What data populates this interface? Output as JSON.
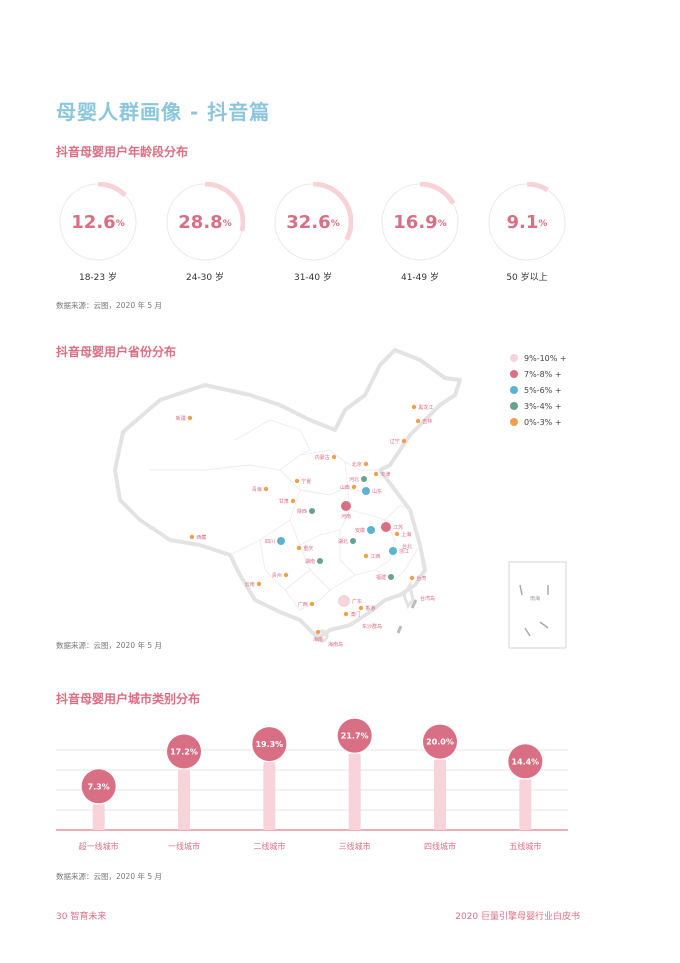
{
  "page_title": "母婴人群画像 - 抖音篇",
  "section1_title": "抖音母婴用户年龄段分布",
  "section2_title": "抖音母婴用户省份分布",
  "section3_title": "抖音母婴用户城市类别分布",
  "source1": "数据来源：云图，2020 年 5 月",
  "source2": "数据来源：云图，2020 年 5 月",
  "source3": "数据来源：云图，2020 年 5 月",
  "colors": {
    "primary": "#d96f84",
    "title_blue": "#8cc6dc",
    "light_pink": "#f7d3d8",
    "grey": "#e6e6e6"
  },
  "age_distribution": [
    {
      "label": "18-23 岁",
      "num": "12.6",
      "pct_sign": "%",
      "value": 12.6
    },
    {
      "label": "24-30 岁",
      "num": "28.8",
      "pct_sign": "%",
      "value": 28.8
    },
    {
      "label": "31-40 岁",
      "num": "32.6",
      "pct_sign": "%",
      "value": 32.6
    },
    {
      "label": "41-49 岁",
      "num": "16.9",
      "pct_sign": "%",
      "value": 16.9
    },
    {
      "label": "50 岁以上",
      "num": "9.1",
      "pct_sign": "%",
      "value": 9.1
    }
  ],
  "legend": [
    {
      "label": "9%-10% +",
      "color": "#f5d5dc"
    },
    {
      "label": "7%-8% +",
      "color": "#d96f84"
    },
    {
      "label": "5%-6% +",
      "color": "#5bb3cf"
    },
    {
      "label": "3%-4% +",
      "color": "#6aa094"
    },
    {
      "label": "0%-3% +",
      "color": "#f0a04b"
    }
  ],
  "provinces": [
    {
      "name": "新疆",
      "cat": 4
    },
    {
      "name": "黑龙江",
      "cat": 4
    },
    {
      "name": "吉林",
      "cat": 4
    },
    {
      "name": "辽宁",
      "cat": 4
    },
    {
      "name": "内蒙古",
      "cat": 4
    },
    {
      "name": "北京",
      "cat": 4
    },
    {
      "name": "天津",
      "cat": 4
    },
    {
      "name": "河北",
      "cat": 3
    },
    {
      "name": "山西",
      "cat": 4
    },
    {
      "name": "山东",
      "cat": 2
    },
    {
      "name": "青海",
      "cat": 4
    },
    {
      "name": "宁夏",
      "cat": 4
    },
    {
      "name": "甘肃",
      "cat": 4
    },
    {
      "name": "陕西",
      "cat": 3
    },
    {
      "name": "河南",
      "cat": 1
    },
    {
      "name": "江苏",
      "cat": 1
    },
    {
      "name": "安徽",
      "cat": 2
    },
    {
      "name": "上海",
      "cat": 4
    },
    {
      "name": "西藏",
      "cat": 4
    },
    {
      "name": "四川",
      "cat": 2
    },
    {
      "name": "湖北",
      "cat": 3
    },
    {
      "name": "浙江",
      "cat": 2
    },
    {
      "name": "重庆",
      "cat": 4
    },
    {
      "name": "江西",
      "cat": 4
    },
    {
      "name": "湖南",
      "cat": 3
    },
    {
      "name": "贵州",
      "cat": 4
    },
    {
      "name": "福建",
      "cat": 3
    },
    {
      "name": "台湾",
      "cat": 4
    },
    {
      "name": "云南",
      "cat": 4
    },
    {
      "name": "广西",
      "cat": 4
    },
    {
      "name": "广东",
      "cat": 0
    },
    {
      "name": "澳门",
      "cat": 4
    },
    {
      "name": "香港",
      "cat": 4
    },
    {
      "name": "海南",
      "cat": 4
    }
  ],
  "map_text": [
    "台北",
    "台湾岛",
    "海南岛",
    "东沙群岛",
    "南海"
  ],
  "chart_data": {
    "type": "bar",
    "categories": [
      "超一线城市",
      "一线城市",
      "二线城市",
      "三线城市",
      "四线城市",
      "五线城市"
    ],
    "values": [
      7.3,
      17.2,
      19.3,
      21.7,
      20.0,
      14.4
    ],
    "value_labels": [
      "7.3%",
      "17.2%",
      "19.3%",
      "21.7%",
      "20.0%",
      "14.4%"
    ],
    "ylim": [
      0,
      25
    ],
    "grid": true,
    "title": "抖音母婴用户城市类别分布"
  },
  "footer": {
    "page": "30",
    "left": "智育未来",
    "right": "2020 巨量引擎母婴行业白皮书"
  }
}
